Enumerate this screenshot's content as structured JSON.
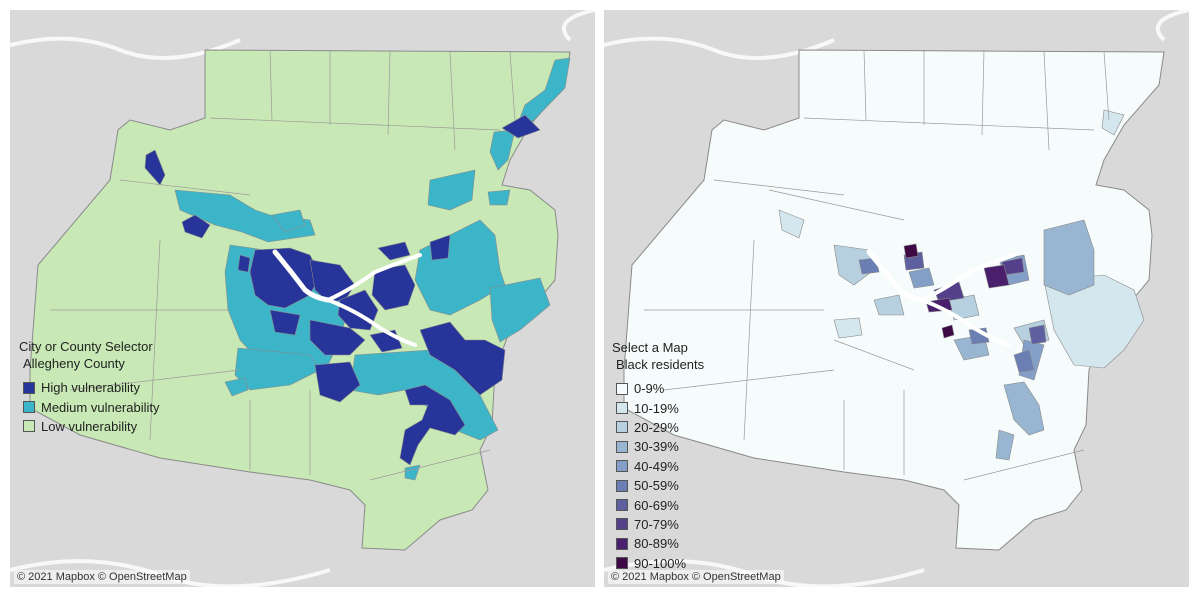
{
  "maps": [
    {
      "legend": {
        "title": "City or County Selector",
        "subtitle": "Allegheny County",
        "items": [
          {
            "label": "High vulnerability",
            "color": "#27349a"
          },
          {
            "label": "Medium vulnerability",
            "color": "#3cb5c9"
          },
          {
            "label": "Low vulnerability",
            "color": "#c8e9b5"
          }
        ]
      },
      "attribution": "© 2021 Mapbox © OpenStreetMap"
    },
    {
      "legend": {
        "title": "Select a Map",
        "subtitle": "Black residents",
        "items": [
          {
            "label": "0-9%",
            "color": "#f6fbfc"
          },
          {
            "label": "10-19%",
            "color": "#d4e6ee"
          },
          {
            "label": "20-29%",
            "color": "#b6d0e0"
          },
          {
            "label": "30-39%",
            "color": "#98b6d2"
          },
          {
            "label": "40-49%",
            "color": "#849fc7"
          },
          {
            "label": "50-59%",
            "color": "#6b7fb4"
          },
          {
            "label": "60-69%",
            "color": "#5d5f9f"
          },
          {
            "label": "70-79%",
            "color": "#54408a"
          },
          {
            "label": "80-89%",
            "color": "#4a1f6b"
          },
          {
            "label": "90-100%",
            "color": "#3d0a46"
          }
        ]
      },
      "attribution": "© 2021 Mapbox © OpenStreetMap"
    }
  ],
  "colors": {
    "basemap": "#d9d9d9",
    "river": "#ffffff",
    "boundary": "#9a9a9a"
  }
}
